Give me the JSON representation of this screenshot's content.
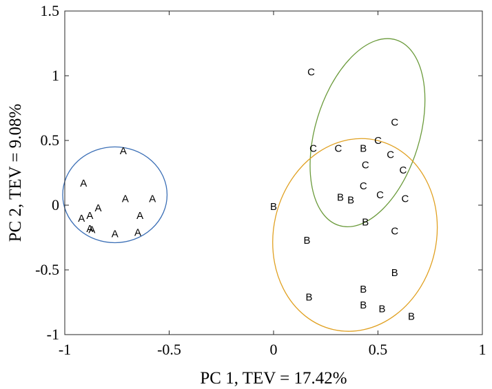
{
  "chart_data": {
    "type": "scatter",
    "xlabel": "PC 1, TEV = 17.42%",
    "ylabel": "PC 2, TEV = 9.08%",
    "xlim": [
      -1,
      1
    ],
    "ylim": [
      -1,
      1.5
    ],
    "xticks": [
      "-1",
      "-0.5",
      "0",
      "0.5",
      "1"
    ],
    "yticks": [
      "-1",
      "-0.5",
      "0",
      "0.5",
      "1",
      "1.5"
    ],
    "grid": false,
    "series": [
      {
        "marker": "A",
        "color": "#000000",
        "points": [
          [
            -0.72,
            0.42
          ],
          [
            -0.91,
            0.17
          ],
          [
            -0.71,
            0.05
          ],
          [
            -0.58,
            0.05
          ],
          [
            -0.84,
            -0.02
          ],
          [
            -0.92,
            -0.1
          ],
          [
            -0.88,
            -0.08
          ],
          [
            -0.64,
            -0.08
          ],
          [
            -0.88,
            -0.18
          ],
          [
            -0.87,
            -0.19
          ],
          [
            -0.76,
            -0.22
          ],
          [
            -0.65,
            -0.21
          ]
        ]
      },
      {
        "marker": "B",
        "color": "#000000",
        "points": [
          [
            0.43,
            0.44
          ],
          [
            0.0,
            -0.01
          ],
          [
            0.32,
            0.06
          ],
          [
            0.37,
            0.04
          ],
          [
            0.44,
            -0.13
          ],
          [
            0.16,
            -0.27
          ],
          [
            0.58,
            -0.52
          ],
          [
            0.43,
            -0.65
          ],
          [
            0.17,
            -0.71
          ],
          [
            0.43,
            -0.77
          ],
          [
            0.52,
            -0.8
          ],
          [
            0.66,
            -0.86
          ]
        ]
      },
      {
        "marker": "C",
        "color": "#000000",
        "points": [
          [
            0.18,
            1.03
          ],
          [
            0.19,
            0.44
          ],
          [
            0.31,
            0.44
          ],
          [
            0.58,
            0.64
          ],
          [
            0.5,
            0.5
          ],
          [
            0.56,
            0.39
          ],
          [
            0.44,
            0.31
          ],
          [
            0.62,
            0.27
          ],
          [
            0.43,
            0.15
          ],
          [
            0.51,
            0.08
          ],
          [
            0.63,
            0.05
          ],
          [
            0.58,
            -0.2
          ]
        ]
      }
    ],
    "ellipses": [
      {
        "color": "#3b6fb6",
        "cx": -0.76,
        "cy": 0.08,
        "rx": 0.25,
        "ry": 0.37,
        "angle_deg": 0
      },
      {
        "color": "#6a9a3a",
        "cx": 0.45,
        "cy": 0.56,
        "rx": 0.25,
        "ry": 0.75,
        "angle_deg": 17
      },
      {
        "color": "#e0a020",
        "cx": 0.39,
        "cy": -0.23,
        "rx": 0.39,
        "ry": 0.75,
        "angle_deg": 13
      }
    ]
  }
}
